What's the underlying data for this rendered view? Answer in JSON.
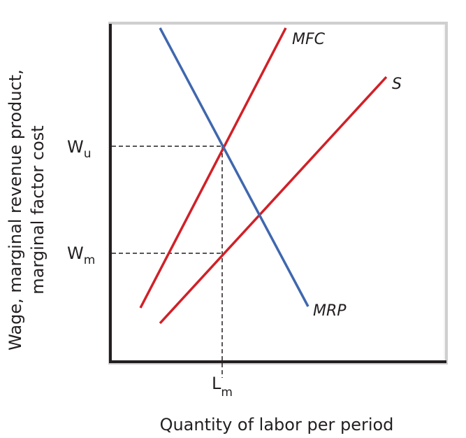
{
  "axes": {
    "y_label": [
      "Wage, marginal revenue product,",
      "marginal factor cost"
    ],
    "x_label": "Quantity of labor per period"
  },
  "curves": [
    {
      "label": "MFC"
    },
    {
      "label": "S"
    },
    {
      "label": "MRP"
    }
  ],
  "markers": [
    {
      "symbol": "W",
      "subscript": "u"
    },
    {
      "symbol": "W",
      "subscript": "m"
    },
    {
      "symbol": "L",
      "subscript": "m"
    }
  ]
}
